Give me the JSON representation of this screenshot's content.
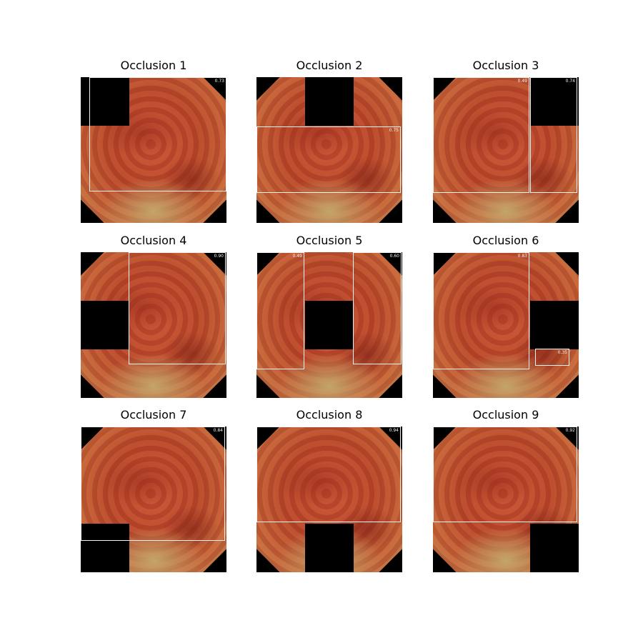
{
  "panels": [
    {
      "title": "Occlusion 1",
      "occluded_cell": 1,
      "scores": [
        "0.73"
      ]
    },
    {
      "title": "Occlusion 2",
      "occluded_cell": 2,
      "scores": [
        "0.75"
      ]
    },
    {
      "title": "Occlusion 3",
      "occluded_cell": 3,
      "scores": [
        "0.49",
        "0.74"
      ]
    },
    {
      "title": "Occlusion 4",
      "occluded_cell": 4,
      "scores": [
        "0.90"
      ]
    },
    {
      "title": "Occlusion 5",
      "occluded_cell": 5,
      "scores": [
        "0.49",
        "0.60"
      ]
    },
    {
      "title": "Occlusion 6",
      "occluded_cell": 6,
      "scores": [
        "0.83",
        "0.35"
      ]
    },
    {
      "title": "Occlusion 7",
      "occluded_cell": 7,
      "scores": [
        "0.84"
      ]
    },
    {
      "title": "Occlusion 8",
      "occluded_cell": 8,
      "scores": [
        "0.94"
      ]
    },
    {
      "title": "Occlusion 9",
      "occluded_cell": 9,
      "scores": [
        "0.92"
      ]
    }
  ],
  "colors": {
    "box": "#f4f4f4",
    "occlusion": "#000000",
    "tissue": "#c75436"
  }
}
